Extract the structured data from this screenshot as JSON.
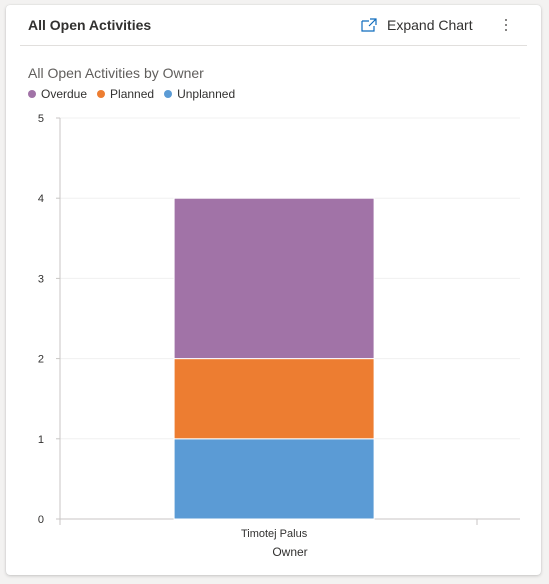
{
  "card": {
    "title": "All Open Activities",
    "expand_label": "Expand Chart",
    "expand_icon": "expand-icon",
    "more_icon": "more-vertical-icon"
  },
  "chart_data": {
    "type": "bar",
    "stacked": true,
    "title": "All Open Activities by Owner",
    "xlabel": "Owner",
    "ylabel": "",
    "categories": [
      "Timotej Palus"
    ],
    "series": [
      {
        "name": "Overdue",
        "values": [
          2
        ],
        "color": "#a173a7"
      },
      {
        "name": "Planned",
        "values": [
          1
        ],
        "color": "#ed7d31"
      },
      {
        "name": "Unplanned",
        "values": [
          1
        ],
        "color": "#5b9bd5"
      }
    ],
    "ylim": [
      0,
      5
    ],
    "yticks": [
      "0",
      "1",
      "2",
      "3",
      "4",
      "5"
    ],
    "grid": true,
    "legend_position": "top-left"
  }
}
